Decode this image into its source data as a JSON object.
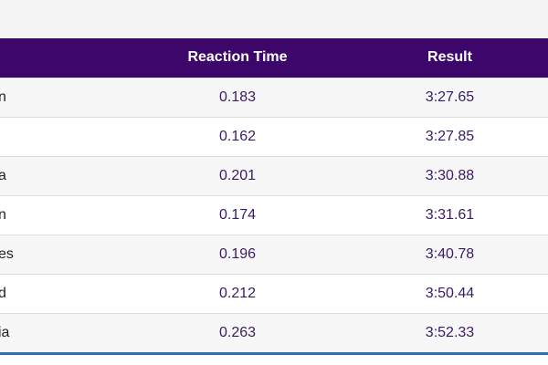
{
  "table": {
    "headers": {
      "country": "",
      "reaction_time": "Reaction Time",
      "result": "Result"
    },
    "rows": [
      {
        "country": "n",
        "reaction_time": "0.183",
        "result": "3:27.65"
      },
      {
        "country": "",
        "reaction_time": "0.162",
        "result": "3:27.85"
      },
      {
        "country": "a",
        "reaction_time": "0.201",
        "result": "3:30.88"
      },
      {
        "country": "n",
        "reaction_time": "0.174",
        "result": "3:31.61"
      },
      {
        "country": "es",
        "reaction_time": "0.196",
        "result": "3:40.78"
      },
      {
        "country": "d",
        "reaction_time": "0.212",
        "result": "3:50.44"
      },
      {
        "country": "ia",
        "reaction_time": "0.263",
        "result": "3:52.33"
      }
    ]
  },
  "colors": {
    "header_bg": "#3d066b",
    "value_text": "#3a1a63",
    "bottom_rule": "#2f6fb3"
  }
}
